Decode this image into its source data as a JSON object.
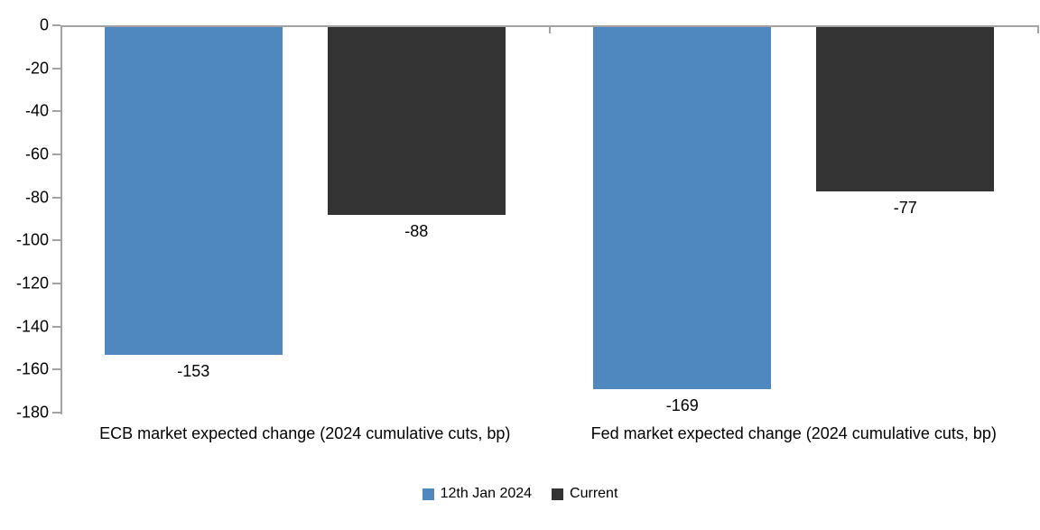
{
  "chart_data": {
    "type": "bar",
    "categories": [
      "ECB market expected change (2024 cumulative cuts, bp)",
      "Fed market expected change (2024 cumulative cuts, bp)"
    ],
    "series": [
      {
        "name": "12th Jan 2024",
        "color": "#4E88BE",
        "values": [
          -153,
          -169
        ]
      },
      {
        "name": "Current",
        "color": "#333333",
        "values": [
          -88,
          -77
        ]
      }
    ],
    "data_labels": {
      "series_0": [
        "-153",
        "-169"
      ],
      "series_1": [
        "-88",
        "-77"
      ]
    },
    "y_ticks": [
      "0",
      "-20",
      "-40",
      "-60",
      "-80",
      "-100",
      "-120",
      "-140",
      "-160",
      "-180"
    ],
    "ylim": [
      -180,
      0
    ],
    "xlabel": "",
    "ylabel": "",
    "title": "",
    "grid": false,
    "legend_position": "bottom",
    "colors": {
      "axis": "#A3A3A3",
      "text": "#000000",
      "background": "#FFFFFF"
    }
  }
}
